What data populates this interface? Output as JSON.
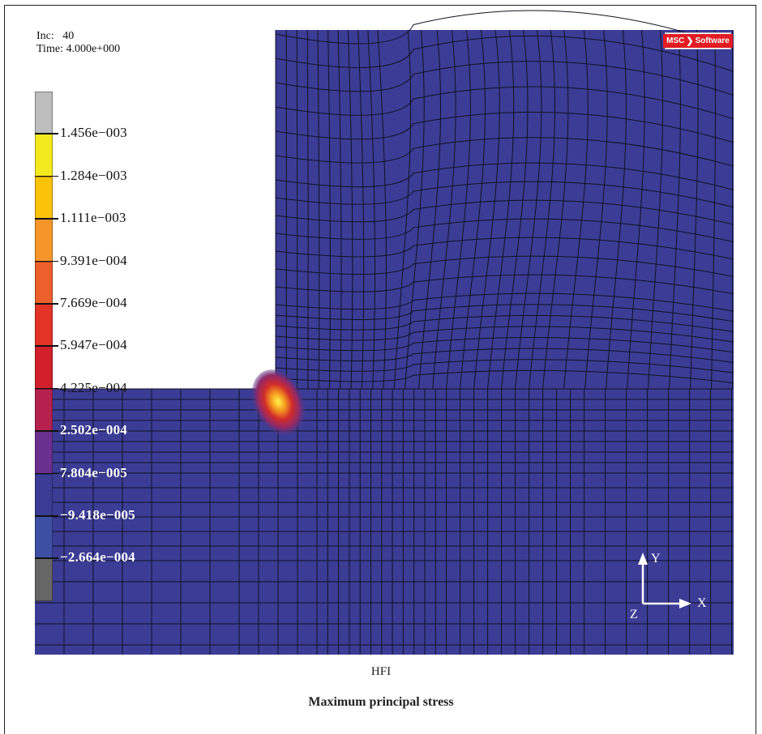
{
  "header": {
    "inc_label": "Inc:",
    "inc_value": "40",
    "time_label": "Time:",
    "time_value": "4.000e+000"
  },
  "logo": {
    "text": "MSC",
    "text2": "Software",
    "icon": "msc-software-swoosh"
  },
  "legend": {
    "swatch_colors": [
      "#bdbdbd",
      "#f2ea1e",
      "#fbc20a",
      "#f6962a",
      "#ed5f2b",
      "#e23326",
      "#d21f2c",
      "#b5214f",
      "#6a3090",
      "#3b3c95",
      "#3d4fa3",
      "#666666"
    ],
    "labels": [
      {
        "text": "1.456e−003",
        "style": "dark"
      },
      {
        "text": "1.284e−003",
        "style": "dark"
      },
      {
        "text": "1.111e−003",
        "style": "dark"
      },
      {
        "text": "9.391e−004",
        "style": "dark"
      },
      {
        "text": "7.669e−004",
        "style": "dark"
      },
      {
        "text": "5.947e−004",
        "style": "dark"
      },
      {
        "text": "4.225e−004",
        "style": "dark"
      },
      {
        "text": "2.502e−004",
        "style": "light"
      },
      {
        "text": "7.804e−005",
        "style": "light"
      },
      {
        "text": "−9.418e−005",
        "style": "light"
      },
      {
        "text": "−2.664e−004",
        "style": "light"
      }
    ]
  },
  "axes": {
    "y": "Y",
    "x": "X",
    "z": "Z"
  },
  "colors": {
    "mesh_fill": "#3b3c95",
    "mesh_line": "#111122",
    "hot_spot": "#fff200"
  },
  "caption": {
    "sub": "HFI",
    "main": "Maximum principal stress"
  }
}
